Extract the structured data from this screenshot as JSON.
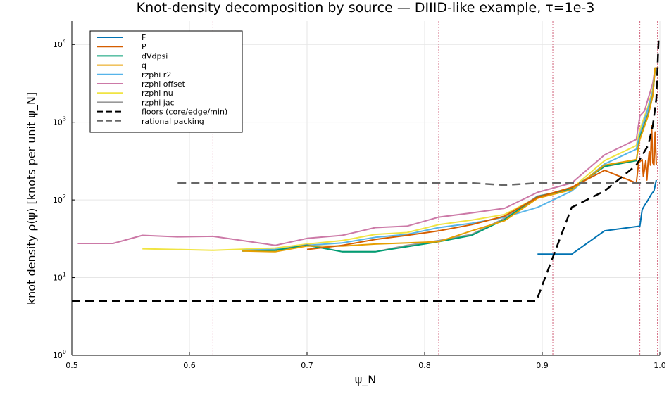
{
  "chart_data": {
    "type": "line",
    "title": "Knot-density decomposition by source — DIIID-like example, τ=1e-3",
    "xlabel": "ψ_N",
    "ylabel": "knot density ρ(ψ) [knots per unit ψ_N]",
    "xlim": [
      0.5,
      1.0
    ],
    "ylim": [
      1,
      20000
    ],
    "yscale": "log",
    "grid": true,
    "legend_position": "top-left",
    "x_ticks": [
      "0.5",
      "0.6",
      "0.7",
      "0.8",
      "0.9",
      "1.0"
    ],
    "y_ticks": [
      {
        "base": "10",
        "exp": "0",
        "value": 1
      },
      {
        "base": "10",
        "exp": "1",
        "value": 10
      },
      {
        "base": "10",
        "exp": "2",
        "value": 100
      },
      {
        "base": "10",
        "exp": "3",
        "value": 1000
      },
      {
        "base": "10",
        "exp": "4",
        "value": 10000
      }
    ],
    "vertical_markers": [
      0.62,
      0.812,
      0.909,
      0.983,
      0.998
    ],
    "marker_color": "#d0607a",
    "series": [
      {
        "name": "rzphi offset",
        "color": "#cc79a7",
        "dash": "",
        "width": 2,
        "x": [
          0.505,
          0.535,
          0.56,
          0.59,
          0.62,
          0.673,
          0.7,
          0.73,
          0.758,
          0.785,
          0.812,
          0.84,
          0.868,
          0.896,
          0.925,
          0.953,
          0.98,
          0.983,
          0.987,
          0.99,
          0.992,
          0.994,
          0.996,
          0.999
        ],
        "y": [
          27.5,
          27.5,
          35,
          33.5,
          34,
          26,
          32,
          35,
          44,
          46,
          60,
          68,
          78,
          125,
          165,
          380,
          600,
          1200,
          1400,
          2000,
          2500,
          3200,
          5000,
          5000
        ]
      },
      {
        "name": "rzphi nu",
        "color": "#f0e442",
        "dash": "",
        "width": 2,
        "x": [
          0.56,
          0.62,
          0.673,
          0.7,
          0.73,
          0.758,
          0.785,
          0.812,
          0.84,
          0.868,
          0.896,
          0.925,
          0.953,
          0.98,
          0.983,
          0.99,
          0.994,
          0.996,
          0.999
        ],
        "y": [
          23.5,
          22.5,
          24,
          27,
          30,
          36,
          38,
          48,
          55,
          65,
          108,
          140,
          320,
          500,
          800,
          1600,
          2700,
          5000,
          5000
        ]
      },
      {
        "name": "rzphi r2",
        "color": "#56b4e9",
        "dash": "",
        "width": 2,
        "x": [
          0.645,
          0.673,
          0.7,
          0.73,
          0.758,
          0.785,
          0.812,
          0.84,
          0.868,
          0.896,
          0.925,
          0.953,
          0.98,
          0.983,
          0.99,
          0.994,
          0.996,
          0.999
        ],
        "y": [
          22.5,
          23,
          26,
          28,
          33,
          36,
          44,
          50,
          60,
          80,
          130,
          290,
          450,
          700,
          1500,
          2500,
          5000,
          5000
        ]
      },
      {
        "name": "rzphi jac",
        "color": "#999999",
        "dash": "",
        "width": 2,
        "x": [
          0.645,
          0.673,
          0.7,
          0.73,
          0.758,
          0.785,
          0.812,
          0.84,
          0.868,
          0.896,
          0.925,
          0.953,
          0.98,
          0.983,
          0.99,
          0.994,
          0.996,
          0.999
        ],
        "y": [
          22,
          22.5,
          26.5,
          21.5,
          21.5,
          26,
          30,
          36,
          58,
          112,
          138,
          268,
          320,
          650,
          1300,
          2300,
          5000,
          5000
        ]
      },
      {
        "name": "dVdpsi",
        "color": "#009e73",
        "dash": "",
        "width": 2,
        "x": [
          0.645,
          0.673,
          0.7,
          0.73,
          0.758,
          0.785,
          0.812,
          0.84,
          0.868,
          0.896,
          0.925,
          0.953,
          0.98,
          0.983,
          0.99,
          0.994,
          0.996,
          0.999
        ],
        "y": [
          22,
          22.5,
          26,
          21.5,
          21.5,
          25,
          29,
          35,
          56,
          110,
          140,
          270,
          320,
          640,
          1250,
          2200,
          5000,
          5000
        ]
      },
      {
        "name": "q",
        "color": "#e69f00",
        "dash": "",
        "width": 2,
        "x": [
          0.645,
          0.673,
          0.7,
          0.73,
          0.758,
          0.785,
          0.812,
          0.84,
          0.868,
          0.896,
          0.925,
          0.953,
          0.98,
          0.983,
          0.99,
          0.994,
          0.996,
          0.999
        ],
        "y": [
          22,
          21.5,
          25.5,
          25.5,
          27,
          28,
          29,
          40,
          54,
          105,
          135,
          280,
          330,
          600,
          1200,
          2200,
          5000,
          5000
        ]
      },
      {
        "name": "P",
        "color": "#d55e00",
        "dash": "",
        "width": 2,
        "x": [
          0.7,
          0.73,
          0.758,
          0.785,
          0.812,
          0.84,
          0.868,
          0.896,
          0.925,
          0.953,
          0.98,
          0.982,
          0.984,
          0.985,
          0.986,
          0.987,
          0.988,
          0.989,
          0.99,
          0.991,
          0.992,
          0.993,
          0.994,
          0.995,
          0.996,
          0.997
        ],
        "y": [
          23,
          26,
          31,
          35,
          40,
          48,
          62,
          108,
          145,
          240,
          165,
          300,
          320,
          330,
          200,
          250,
          320,
          180,
          300,
          420,
          280,
          900,
          300,
          280,
          750,
          280
        ]
      },
      {
        "name": "F",
        "color": "#0072b2",
        "dash": "",
        "width": 2,
        "x": [
          0.896,
          0.925,
          0.953,
          0.983,
          0.985,
          0.987,
          0.99,
          0.993,
          0.995,
          0.997
        ],
        "y": [
          20,
          20,
          40,
          46,
          75,
          85,
          100,
          120,
          130,
          180
        ]
      },
      {
        "name": "floors (core/edge/min)",
        "color": "#000000",
        "dash": "12,7",
        "width": 2.5,
        "x": [
          0.5,
          0.895,
          0.925,
          0.953,
          0.98,
          0.99,
          0.994,
          0.997,
          0.999
        ],
        "y": [
          5,
          5,
          80,
          130,
          280,
          500,
          900,
          2000,
          12000
        ]
      },
      {
        "name": "rational packing",
        "color": "#666666",
        "dash": "12,7",
        "width": 2.5,
        "x": [
          0.59,
          0.62,
          0.7,
          0.8,
          0.84,
          0.868,
          0.896,
          0.93,
          0.96,
          1.0
        ],
        "y": [
          165,
          165,
          165,
          165,
          165,
          155,
          165,
          165,
          165,
          165
        ]
      }
    ],
    "legend": [
      {
        "label": "F",
        "color": "#0072b2",
        "dash": ""
      },
      {
        "label": "P",
        "color": "#d55e00",
        "dash": ""
      },
      {
        "label": "dVdpsi",
        "color": "#009e73",
        "dash": ""
      },
      {
        "label": "q",
        "color": "#e69f00",
        "dash": ""
      },
      {
        "label": "rzphi r2",
        "color": "#56b4e9",
        "dash": ""
      },
      {
        "label": "rzphi offset",
        "color": "#cc79a7",
        "dash": ""
      },
      {
        "label": "rzphi nu",
        "color": "#f0e442",
        "dash": ""
      },
      {
        "label": "rzphi jac",
        "color": "#999999",
        "dash": ""
      },
      {
        "label": "floors (core/edge/min)",
        "color": "#000000",
        "dash": "8,5"
      },
      {
        "label": "rational packing",
        "color": "#666666",
        "dash": "8,5"
      }
    ]
  }
}
